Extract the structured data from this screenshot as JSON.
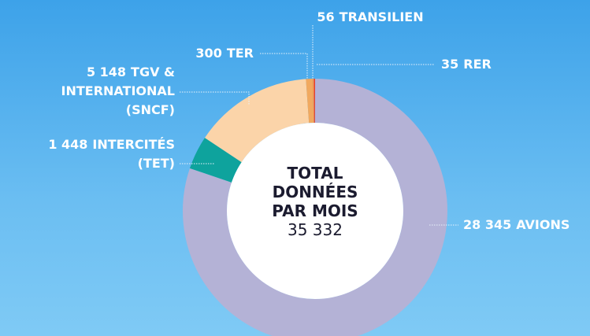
{
  "chart_data": {
    "type": "donut",
    "categories": [
      "AVIONS",
      "INTERCITÉS (TET)",
      "TGV & INTERNATIONAL (SNCF)",
      "TER",
      "TRANSILIEN",
      "RER"
    ],
    "values": [
      28345,
      1448,
      5148,
      300,
      56,
      35
    ],
    "value_labels": [
      "28 345",
      "1 448",
      "5 148",
      "300",
      "56",
      "35"
    ],
    "colors": [
      "#b4b2d6",
      "#0ea39d",
      "#fbd4a9",
      "#f1a95f",
      "#f07f45",
      "#e5352b"
    ],
    "center_text": [
      "TOTAL",
      "DONNÉES",
      "PAR MOIS"
    ],
    "total": "35 332"
  }
}
